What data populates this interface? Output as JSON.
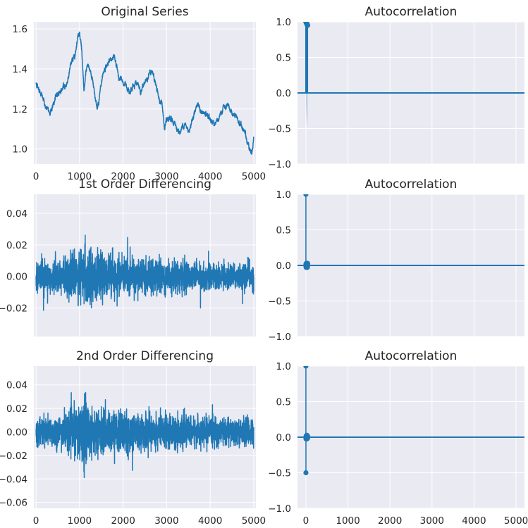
{
  "chart_data": [
    {
      "type": "line",
      "title": "Original Series",
      "xlim": [
        -50,
        5050
      ],
      "ylim": [
        0.925,
        1.635
      ],
      "yticks": [
        1.0,
        1.2,
        1.4,
        1.6
      ],
      "ytick_labels": [
        "1.0",
        "1.2",
        "1.4",
        "1.6"
      ],
      "xticks": [
        0,
        1000,
        2000,
        3000,
        4000,
        5000
      ],
      "xtick_labels": [
        "0",
        "1000",
        "2000",
        "3000",
        "4000",
        "5000"
      ],
      "grid": true,
      "series_profile": {
        "x": [
          0,
          100,
          200,
          300,
          400,
          500,
          600,
          700,
          800,
          900,
          950,
          1000,
          1050,
          1100,
          1150,
          1200,
          1300,
          1400,
          1500,
          1600,
          1700,
          1800,
          1900,
          2000,
          2100,
          2200,
          2300,
          2400,
          2500,
          2600,
          2700,
          2800,
          2900,
          2950,
          3000,
          3100,
          3200,
          3300,
          3400,
          3500,
          3600,
          3700,
          3800,
          3900,
          4000,
          4100,
          4200,
          4300,
          4400,
          4500,
          4600,
          4700,
          4800,
          4900,
          4950,
          5000
        ],
        "y": [
          1.33,
          1.29,
          1.22,
          1.18,
          1.22,
          1.28,
          1.3,
          1.32,
          1.42,
          1.48,
          1.56,
          1.59,
          1.5,
          1.28,
          1.38,
          1.42,
          1.35,
          1.2,
          1.32,
          1.4,
          1.44,
          1.47,
          1.36,
          1.33,
          1.31,
          1.3,
          1.34,
          1.28,
          1.33,
          1.38,
          1.37,
          1.27,
          1.22,
          1.1,
          1.13,
          1.14,
          1.12,
          1.08,
          1.13,
          1.09,
          1.16,
          1.23,
          1.18,
          1.17,
          1.15,
          1.13,
          1.14,
          1.21,
          1.2,
          1.18,
          1.15,
          1.12,
          1.08,
          1.01,
          0.98,
          1.06
        ],
        "noise": 0.01
      }
    },
    {
      "type": "bar",
      "subtype": "acf-stem",
      "title": "Autocorrelation",
      "xlim": [
        -200,
        5200
      ],
      "ylim": [
        -1.0,
        1.0
      ],
      "yticks": [
        -1.0,
        -0.5,
        0.0,
        0.5,
        1.0
      ],
      "ytick_labels": [
        "−1.0",
        "−0.5",
        "0.0",
        "0.5",
        "1.0"
      ],
      "xticks": [
        0,
        1000,
        2000,
        3000,
        4000,
        5000
      ],
      "xtick_labels": [],
      "grid": true,
      "values_profile": {
        "lags": 40,
        "lag0": 1.0,
        "decay": "slow",
        "min": 0.95
      },
      "confidence_band": "widening"
    },
    {
      "type": "line",
      "title": "1st Order Differencing",
      "xlim": [
        -50,
        5050
      ],
      "ylim": [
        -0.038,
        0.052
      ],
      "yticks": [
        -0.02,
        0.0,
        0.02,
        0.04
      ],
      "ytick_labels": [
        "−0.02",
        "0.00",
        "0.02",
        "0.04"
      ],
      "xticks": [
        0,
        1000,
        2000,
        3000,
        4000,
        5000
      ],
      "xtick_labels": [],
      "grid": true,
      "noise_profile": {
        "x": [
          0,
          500,
          900,
          1000,
          1100,
          1300,
          1600,
          1800,
          2200,
          2800,
          3200,
          3600,
          4000,
          4500,
          5000
        ],
        "amplitude": [
          0.008,
          0.009,
          0.012,
          0.016,
          0.017,
          0.014,
          0.011,
          0.012,
          0.01,
          0.01,
          0.009,
          0.008,
          0.007,
          0.007,
          0.008
        ]
      }
    },
    {
      "type": "bar",
      "subtype": "acf-stem",
      "title": "Autocorrelation",
      "xlim": [
        -200,
        5200
      ],
      "ylim": [
        -1.0,
        1.0
      ],
      "yticks": [
        -1.0,
        -0.5,
        0.0,
        0.5,
        1.0
      ],
      "ytick_labels": [
        "−1.0",
        "−0.5",
        "0.0",
        "0.5",
        "1.0"
      ],
      "xticks": [
        0,
        1000,
        2000,
        3000,
        4000,
        5000
      ],
      "xtick_labels": [],
      "grid": true,
      "values_profile": {
        "lags": 40,
        "lag0": 1.0,
        "lag1": 0.0,
        "spread": 0.03
      }
    },
    {
      "type": "line",
      "title": "2nd Order Differencing",
      "xlim": [
        -50,
        5050
      ],
      "ylim": [
        -0.065,
        0.056
      ],
      "yticks": [
        -0.06,
        -0.04,
        -0.02,
        0.0,
        0.02,
        0.04
      ],
      "ytick_labels": [
        "−0.06",
        "−0.04",
        "−0.02",
        "0.00",
        "0.02",
        "0.04"
      ],
      "xticks": [
        0,
        1000,
        2000,
        3000,
        4000,
        5000
      ],
      "xtick_labels": [
        "0",
        "1000",
        "2000",
        "3000",
        "4000",
        "5000"
      ],
      "grid": true,
      "noise_profile": {
        "x": [
          0,
          500,
          900,
          1000,
          1100,
          1300,
          1600,
          1800,
          2200,
          2800,
          3200,
          3600,
          4000,
          4500,
          5000
        ],
        "amplitude": [
          0.011,
          0.012,
          0.017,
          0.022,
          0.024,
          0.019,
          0.015,
          0.016,
          0.014,
          0.014,
          0.012,
          0.011,
          0.01,
          0.01,
          0.011
        ]
      }
    },
    {
      "type": "bar",
      "subtype": "acf-stem",
      "title": "Autocorrelation",
      "xlim": [
        -200,
        5200
      ],
      "ylim": [
        -1.0,
        1.0
      ],
      "yticks": [
        -1.0,
        -0.5,
        0.0,
        0.5,
        1.0
      ],
      "ytick_labels": [
        "−1.0",
        "−0.5",
        "0.0",
        "0.5",
        "1.0"
      ],
      "xticks": [
        0,
        1000,
        2000,
        3000,
        4000,
        5000
      ],
      "xtick_labels": [
        "0",
        "1000",
        "2000",
        "3000",
        "4000",
        "5000"
      ],
      "grid": true,
      "values_profile": {
        "lags": 40,
        "lag0": 1.0,
        "lag1": -0.5,
        "spread": 0.03
      }
    }
  ],
  "colors": {
    "line": "#1f77b4",
    "panel_bg": "#eaeaf2",
    "grid": "#ffffff",
    "text": "#262626"
  }
}
